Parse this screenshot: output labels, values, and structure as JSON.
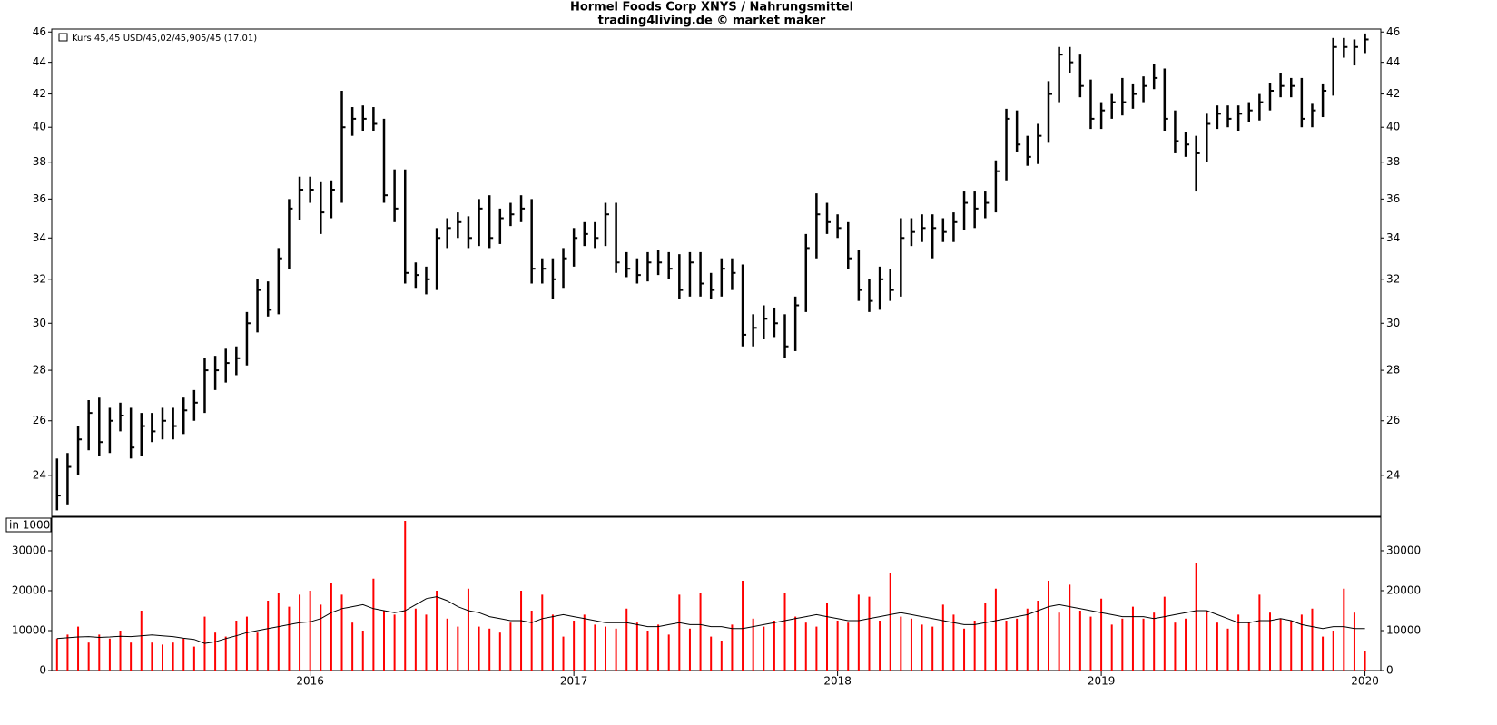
{
  "chart_data": [
    {
      "type": "ohlc",
      "title": "Hormel Foods Corp XNYS / Nahrungsmittel",
      "subtitle": "trading4living.de © market maker",
      "legend_label": "Kurs 45,45 USD/45,02/45,905/45 (17.01)",
      "color": "#000000",
      "log": true,
      "xlim": [
        2015.02,
        2020.06
      ],
      "xticks": [
        2016,
        2017,
        2018,
        2019,
        2020
      ],
      "ylim": [
        22.6,
        46.2
      ],
      "yticks": [
        24,
        26,
        28,
        30,
        32,
        34,
        36,
        38,
        40,
        42,
        44,
        46
      ],
      "x": [
        2015.04,
        2015.08,
        2015.12,
        2015.16,
        2015.2,
        2015.24,
        2015.28,
        2015.32,
        2015.36,
        2015.4,
        2015.44,
        2015.48,
        2015.52,
        2015.56,
        2015.6,
        2015.64,
        2015.68,
        2015.72,
        2015.76,
        2015.8,
        2015.84,
        2015.88,
        2015.92,
        2015.96,
        2016.0,
        2016.04,
        2016.08,
        2016.12,
        2016.16,
        2016.2,
        2016.24,
        2016.28,
        2016.32,
        2016.36,
        2016.4,
        2016.44,
        2016.48,
        2016.52,
        2016.56,
        2016.6,
        2016.64,
        2016.68,
        2016.72,
        2016.76,
        2016.8,
        2016.84,
        2016.88,
        2016.92,
        2016.96,
        2017.0,
        2017.04,
        2017.08,
        2017.12,
        2017.16,
        2017.2,
        2017.24,
        2017.28,
        2017.32,
        2017.36,
        2017.4,
        2017.44,
        2017.48,
        2017.52,
        2017.56,
        2017.6,
        2017.64,
        2017.68,
        2017.72,
        2017.76,
        2017.8,
        2017.84,
        2017.88,
        2017.92,
        2017.96,
        2018.0,
        2018.04,
        2018.08,
        2018.12,
        2018.16,
        2018.2,
        2018.24,
        2018.28,
        2018.32,
        2018.36,
        2018.4,
        2018.44,
        2018.48,
        2018.52,
        2018.56,
        2018.6,
        2018.64,
        2018.68,
        2018.72,
        2018.76,
        2018.8,
        2018.84,
        2018.88,
        2018.92,
        2018.96,
        2019.0,
        2019.04,
        2019.08,
        2019.12,
        2019.16,
        2019.2,
        2019.24,
        2019.28,
        2019.32,
        2019.36,
        2019.4,
        2019.44,
        2019.48,
        2019.52,
        2019.56,
        2019.6,
        2019.64,
        2019.68,
        2019.72,
        2019.76,
        2019.8,
        2019.84,
        2019.88,
        2019.92,
        2019.96,
        2020.0
      ],
      "high": [
        24.6,
        24.8,
        25.8,
        26.8,
        26.9,
        26.5,
        26.7,
        26.5,
        26.3,
        26.3,
        26.5,
        26.5,
        26.9,
        27.2,
        28.5,
        28.6,
        28.9,
        29,
        30.5,
        32,
        31.9,
        33.5,
        36,
        37.2,
        37.2,
        36.9,
        37,
        42.2,
        41.2,
        41.3,
        41.2,
        40.5,
        37.6,
        37.6,
        32.8,
        32.6,
        34.5,
        35,
        35.3,
        35.1,
        36,
        36.2,
        35.5,
        35.8,
        36.2,
        36,
        33,
        33,
        33.5,
        34.5,
        34.8,
        34.8,
        35.8,
        35.8,
        33.3,
        33,
        33.3,
        33.4,
        33.3,
        33.2,
        33.3,
        33.3,
        32.3,
        33,
        33,
        32.7,
        30.4,
        30.8,
        30.7,
        30.4,
        31.2,
        34.2,
        36.3,
        35.8,
        35.2,
        34.8,
        33.4,
        32,
        32.6,
        32.5,
        35,
        35,
        35.2,
        35.2,
        35,
        35.3,
        36.4,
        36.4,
        36.4,
        38.1,
        41.1,
        41,
        39.5,
        40.2,
        42.8,
        45,
        45,
        44.5,
        42.9,
        41.5,
        42,
        43,
        42.6,
        43.1,
        43.9,
        43.6,
        41,
        39.7,
        39.5,
        40.8,
        41.3,
        41.3,
        41.3,
        41.5,
        42,
        42.7,
        43.3,
        43,
        43,
        41.4,
        42.6,
        45.6,
        45.6,
        45.5,
        45.9
      ],
      "low": [
        22.8,
        23,
        24,
        24.9,
        24.7,
        24.8,
        25.6,
        24.6,
        24.7,
        25.2,
        25.3,
        25.3,
        25.5,
        26,
        26.3,
        27.2,
        27.5,
        27.8,
        28.2,
        29.6,
        30.3,
        30.4,
        32.5,
        34.9,
        35.8,
        34.2,
        35,
        35.8,
        39.5,
        39.8,
        39.8,
        35.8,
        34.8,
        31.8,
        31.6,
        31.3,
        31.5,
        33.5,
        34,
        33.5,
        33.6,
        33.5,
        33.7,
        34.6,
        34.8,
        31.8,
        31.8,
        31.1,
        31.6,
        32.6,
        33.6,
        33.5,
        33.6,
        32.3,
        32.1,
        31.8,
        31.9,
        32.2,
        32,
        31.1,
        31.2,
        31.2,
        31.1,
        31.2,
        31.5,
        29,
        29,
        29.3,
        29.4,
        28.5,
        28.8,
        30.5,
        33,
        34.2,
        34,
        32.5,
        31,
        30.5,
        30.6,
        31,
        31.2,
        33.6,
        33.8,
        33,
        33.8,
        33.8,
        34.4,
        34.5,
        35,
        35.3,
        37,
        38.6,
        37.8,
        37.9,
        39.1,
        41.5,
        43.3,
        41.8,
        39.9,
        39.9,
        40.5,
        40.7,
        41.1,
        41.5,
        42.3,
        39.8,
        38.5,
        38.3,
        36.4,
        38,
        39.9,
        40,
        39.8,
        40.3,
        40.4,
        41,
        41.8,
        41.8,
        40,
        40,
        40.6,
        41.9,
        44.3,
        43.8,
        44.6
      ],
      "close": [
        23.3,
        24.3,
        25.3,
        26.3,
        25.2,
        26,
        26.2,
        25,
        25.8,
        25.6,
        26,
        25.8,
        26.4,
        26.7,
        28,
        28,
        28.3,
        28.5,
        30,
        31.5,
        30.6,
        33,
        35.5,
        36.5,
        36.5,
        35.3,
        36.5,
        40,
        40.5,
        40.5,
        40.2,
        36.2,
        35.5,
        32.3,
        32.2,
        32,
        34,
        34.5,
        34.8,
        34,
        35.5,
        34,
        35,
        35.2,
        35.5,
        32.5,
        32.5,
        32,
        33,
        34,
        34.2,
        34,
        35.2,
        32.8,
        32.5,
        32.2,
        32.8,
        32.8,
        32.5,
        31.5,
        32.8,
        31.8,
        31.5,
        32.5,
        32.3,
        29.5,
        29.8,
        30.2,
        30,
        29,
        30.8,
        33.5,
        35.2,
        34.8,
        34.5,
        33,
        31.5,
        31,
        32,
        31.5,
        34,
        34.3,
        34.5,
        34.5,
        34.3,
        34.8,
        35.8,
        35.5,
        35.8,
        37.5,
        40.5,
        39,
        38.3,
        39.5,
        42,
        44.5,
        44,
        42.5,
        40.5,
        41,
        41.5,
        41.5,
        42,
        42.5,
        43,
        40.5,
        39.2,
        39,
        38.5,
        40.2,
        40.8,
        40.5,
        40.8,
        41,
        41.5,
        42.2,
        42.5,
        42.5,
        40.5,
        41,
        42.2,
        45,
        45,
        45,
        45.5
      ]
    },
    {
      "type": "volume",
      "y_label": "in 1000",
      "color": "#ff0000",
      "line_color": "#000000",
      "ylim": [
        0,
        38400
      ],
      "yticks": [
        0,
        10000,
        20000,
        30000
      ],
      "values": [
        8000,
        9000,
        11000,
        7000,
        9000,
        8000,
        10000,
        7000,
        15000,
        7000,
        6500,
        7000,
        8000,
        6000,
        13500,
        9500,
        8500,
        12500,
        13500,
        9500,
        17500,
        19500,
        16000,
        19000,
        20000,
        16500,
        22000,
        19000,
        12000,
        10000,
        23000,
        15000,
        14000,
        37500,
        15500,
        14000,
        20000,
        13000,
        11000,
        20500,
        11000,
        10500,
        9500,
        12000,
        20000,
        15000,
        19000,
        14000,
        8500,
        12500,
        14000,
        11500,
        11000,
        10500,
        15500,
        12000,
        10000,
        11500,
        9000,
        19000,
        10500,
        19500,
        8500,
        7500,
        11500,
        22500,
        13000,
        11000,
        12500,
        19500,
        13500,
        12000,
        11000,
        17000,
        12500,
        12000,
        19000,
        18500,
        12500,
        24500,
        13500,
        13000,
        11500,
        11000,
        16500,
        14000,
        10500,
        12500,
        17000,
        20500,
        12500,
        13000,
        15500,
        17500,
        22500,
        14500,
        21500,
        15000,
        13500,
        18000,
        11500,
        13000,
        16000,
        13000,
        14500,
        18500,
        12000,
        13000,
        27000,
        15000,
        12000,
        10500,
        14000,
        12000,
        19000,
        14500,
        13000,
        12500,
        14000,
        15500,
        8500,
        10000,
        20500,
        14500,
        5000
      ],
      "line_values": [
        8000,
        8200,
        8400,
        8500,
        8300,
        8400,
        8600,
        8500,
        8700,
        8900,
        8700,
        8500,
        8100,
        7800,
        6800,
        7200,
        8000,
        8700,
        9500,
        10000,
        10500,
        11000,
        11500,
        12000,
        12200,
        13000,
        14500,
        15500,
        16000,
        16500,
        15500,
        15000,
        14500,
        15000,
        16500,
        18000,
        18500,
        17500,
        16000,
        15000,
        14500,
        13500,
        13000,
        12500,
        12500,
        12000,
        13000,
        13500,
        14000,
        13500,
        13000,
        12500,
        12000,
        12000,
        12000,
        11500,
        11000,
        11000,
        11500,
        12000,
        11500,
        11500,
        11000,
        11000,
        10500,
        10500,
        11000,
        11500,
        12000,
        12500,
        13000,
        13500,
        14000,
        13500,
        13000,
        12500,
        12500,
        13000,
        13500,
        14000,
        14500,
        14000,
        13500,
        13000,
        12500,
        12000,
        11500,
        11500,
        12000,
        12500,
        13000,
        13500,
        14000,
        15000,
        16000,
        16500,
        16000,
        15500,
        15000,
        14500,
        14000,
        13500,
        13500,
        13500,
        13000,
        13500,
        14000,
        14500,
        15000,
        15000,
        14000,
        13000,
        12000,
        12000,
        12500,
        12500,
        13000,
        12500,
        11500,
        11000,
        10500,
        11000,
        11000,
        10500,
        10500
      ]
    }
  ]
}
